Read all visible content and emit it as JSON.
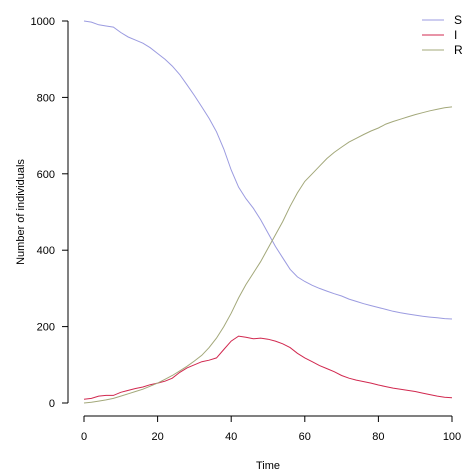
{
  "chart_data": {
    "type": "line",
    "title": "",
    "xlabel": "Time",
    "ylabel": "Number of individuals",
    "xlim": [
      0,
      100
    ],
    "ylim": [
      0,
      1000
    ],
    "xticks": [
      0,
      20,
      40,
      60,
      80,
      100
    ],
    "yticks": [
      0,
      200,
      400,
      600,
      800,
      1000
    ],
    "grid": false,
    "legend_position": "top-right",
    "series": [
      {
        "name": "S",
        "color": "#9b9be0",
        "points": [
          [
            0,
            1000
          ],
          [
            2,
            997
          ],
          [
            4,
            990
          ],
          [
            6,
            987
          ],
          [
            8,
            984
          ],
          [
            10,
            970
          ],
          [
            12,
            958
          ],
          [
            14,
            950
          ],
          [
            16,
            942
          ],
          [
            18,
            930
          ],
          [
            20,
            915
          ],
          [
            22,
            900
          ],
          [
            24,
            882
          ],
          [
            26,
            860
          ],
          [
            28,
            833
          ],
          [
            30,
            805
          ],
          [
            32,
            775
          ],
          [
            34,
            745
          ],
          [
            36,
            710
          ],
          [
            38,
            665
          ],
          [
            40,
            610
          ],
          [
            42,
            565
          ],
          [
            44,
            535
          ],
          [
            46,
            510
          ],
          [
            48,
            480
          ],
          [
            50,
            445
          ],
          [
            52,
            410
          ],
          [
            54,
            380
          ],
          [
            56,
            350
          ],
          [
            58,
            330
          ],
          [
            60,
            318
          ],
          [
            62,
            308
          ],
          [
            64,
            300
          ],
          [
            66,
            293
          ],
          [
            68,
            286
          ],
          [
            70,
            280
          ],
          [
            72,
            272
          ],
          [
            74,
            266
          ],
          [
            76,
            260
          ],
          [
            78,
            255
          ],
          [
            80,
            250
          ],
          [
            82,
            245
          ],
          [
            84,
            240
          ],
          [
            86,
            236
          ],
          [
            88,
            233
          ],
          [
            90,
            230
          ],
          [
            92,
            227
          ],
          [
            94,
            225
          ],
          [
            96,
            223
          ],
          [
            98,
            221
          ],
          [
            100,
            220
          ]
        ]
      },
      {
        "name": "I",
        "color": "#d1284f",
        "points": [
          [
            0,
            10
          ],
          [
            2,
            12
          ],
          [
            4,
            18
          ],
          [
            6,
            20
          ],
          [
            8,
            20
          ],
          [
            10,
            28
          ],
          [
            12,
            33
          ],
          [
            14,
            38
          ],
          [
            16,
            42
          ],
          [
            18,
            48
          ],
          [
            20,
            52
          ],
          [
            22,
            57
          ],
          [
            24,
            65
          ],
          [
            26,
            80
          ],
          [
            28,
            92
          ],
          [
            30,
            100
          ],
          [
            32,
            108
          ],
          [
            34,
            112
          ],
          [
            36,
            118
          ],
          [
            38,
            140
          ],
          [
            40,
            162
          ],
          [
            42,
            175
          ],
          [
            44,
            172
          ],
          [
            46,
            168
          ],
          [
            48,
            170
          ],
          [
            50,
            167
          ],
          [
            52,
            162
          ],
          [
            54,
            155
          ],
          [
            56,
            145
          ],
          [
            58,
            130
          ],
          [
            60,
            118
          ],
          [
            62,
            108
          ],
          [
            64,
            98
          ],
          [
            66,
            90
          ],
          [
            68,
            82
          ],
          [
            70,
            72
          ],
          [
            72,
            65
          ],
          [
            74,
            60
          ],
          [
            76,
            56
          ],
          [
            78,
            52
          ],
          [
            80,
            47
          ],
          [
            82,
            43
          ],
          [
            84,
            39
          ],
          [
            86,
            36
          ],
          [
            88,
            33
          ],
          [
            90,
            30
          ],
          [
            92,
            26
          ],
          [
            94,
            22
          ],
          [
            96,
            18
          ],
          [
            98,
            15
          ],
          [
            100,
            14
          ]
        ]
      },
      {
        "name": "R",
        "color": "#a3a87a",
        "points": [
          [
            0,
            0
          ],
          [
            2,
            2
          ],
          [
            4,
            5
          ],
          [
            6,
            8
          ],
          [
            8,
            12
          ],
          [
            10,
            18
          ],
          [
            12,
            24
          ],
          [
            14,
            30
          ],
          [
            16,
            36
          ],
          [
            18,
            44
          ],
          [
            20,
            52
          ],
          [
            22,
            62
          ],
          [
            24,
            72
          ],
          [
            26,
            84
          ],
          [
            28,
            96
          ],
          [
            30,
            110
          ],
          [
            32,
            125
          ],
          [
            34,
            145
          ],
          [
            36,
            170
          ],
          [
            38,
            200
          ],
          [
            40,
            235
          ],
          [
            42,
            275
          ],
          [
            44,
            310
          ],
          [
            46,
            340
          ],
          [
            48,
            370
          ],
          [
            50,
            405
          ],
          [
            52,
            440
          ],
          [
            54,
            475
          ],
          [
            56,
            515
          ],
          [
            58,
            550
          ],
          [
            60,
            580
          ],
          [
            62,
            600
          ],
          [
            64,
            620
          ],
          [
            66,
            640
          ],
          [
            68,
            656
          ],
          [
            70,
            670
          ],
          [
            72,
            683
          ],
          [
            74,
            693
          ],
          [
            76,
            703
          ],
          [
            78,
            712
          ],
          [
            80,
            720
          ],
          [
            82,
            730
          ],
          [
            84,
            737
          ],
          [
            86,
            743
          ],
          [
            88,
            749
          ],
          [
            90,
            755
          ],
          [
            92,
            760
          ],
          [
            94,
            765
          ],
          [
            96,
            769
          ],
          [
            98,
            773
          ],
          [
            100,
            775
          ]
        ]
      }
    ]
  }
}
